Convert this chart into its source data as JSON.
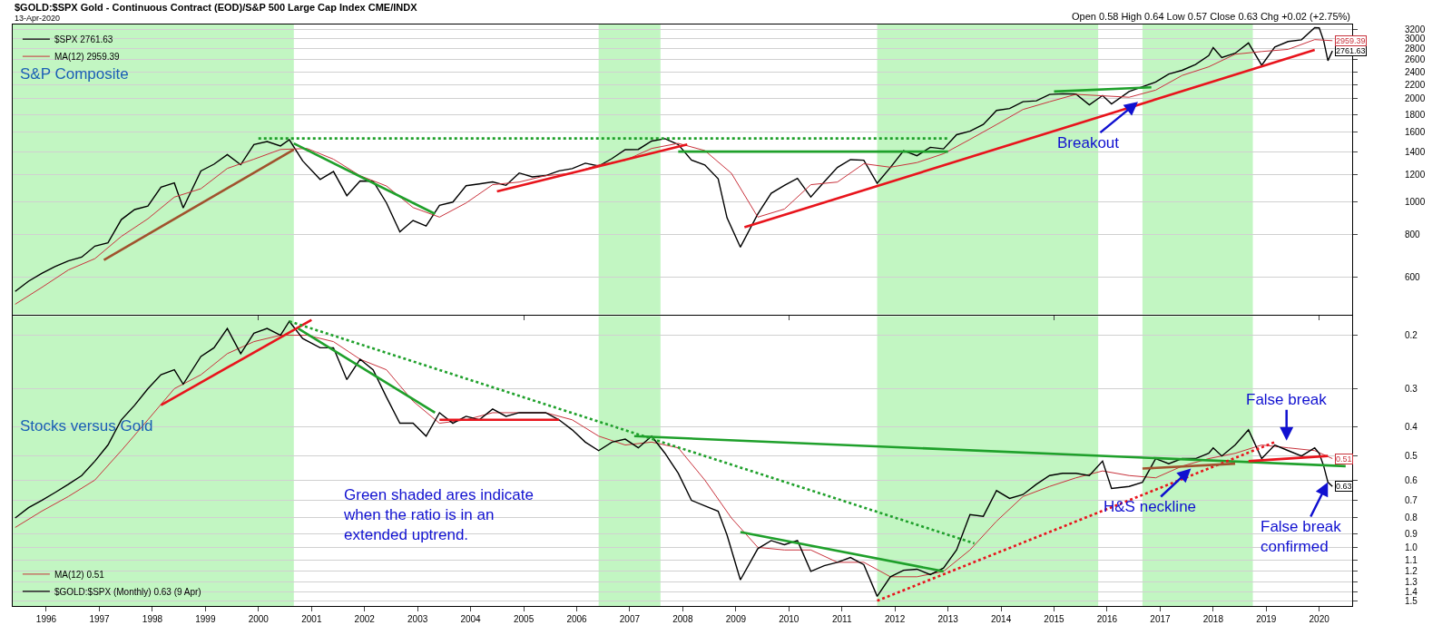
{
  "chart_data": [
    {
      "type": "line",
      "title": "$GOLD:$SPX Gold - Continuous Contract (EOD)/S&P 500 Large Cap Index CME/INDX",
      "subtitle": "13-Apr-2020",
      "x": [
        "1995-06",
        "1995-09",
        "1995-12",
        "1996-03",
        "1996-06",
        "1996-09",
        "1996-12",
        "1997-03",
        "1997-06",
        "1997-09",
        "1997-12",
        "1998-03",
        "1998-06",
        "1998-08",
        "1998-12",
        "1999-03",
        "1999-06",
        "1999-09",
        "1999-12",
        "2000-03",
        "2000-06",
        "2000-08",
        "2000-11",
        "2001-03",
        "2001-06",
        "2001-09",
        "2001-12",
        "2002-03",
        "2002-06",
        "2002-09",
        "2002-12",
        "2003-03",
        "2003-06",
        "2003-09",
        "2003-12",
        "2004-03",
        "2004-06",
        "2004-09",
        "2004-12",
        "2005-03",
        "2005-06",
        "2005-09",
        "2005-12",
        "2006-03",
        "2006-06",
        "2006-09",
        "2006-12",
        "2007-03",
        "2007-06",
        "2007-09",
        "2007-12",
        "2008-03",
        "2008-06",
        "2008-09",
        "2008-11",
        "2009-02",
        "2009-06",
        "2009-09",
        "2009-12",
        "2010-03",
        "2010-06",
        "2010-09",
        "2010-12",
        "2011-03",
        "2011-06",
        "2011-09",
        "2011-12",
        "2012-03",
        "2012-06",
        "2012-09",
        "2012-12",
        "2013-03",
        "2013-06",
        "2013-09",
        "2013-12",
        "2014-03",
        "2014-06",
        "2014-09",
        "2014-12",
        "2015-03",
        "2015-06",
        "2015-09",
        "2015-12",
        "2016-02",
        "2016-06",
        "2016-09",
        "2016-12",
        "2017-03",
        "2017-06",
        "2017-09",
        "2017-12",
        "2018-01",
        "2018-03",
        "2018-06",
        "2018-09",
        "2018-12",
        "2019-03",
        "2019-06",
        "2019-09",
        "2019-12",
        "2020-01",
        "2020-02",
        "2020-03",
        "2020-04"
      ],
      "series": [
        {
          "name": "$SPX 2761.63",
          "color": "#000000",
          "values": [
            545,
            584,
            616,
            645,
            670,
            687,
            740,
            757,
            885,
            947,
            970,
            1101,
            1133,
            957,
            1229,
            1286,
            1372,
            1282,
            1469,
            1498,
            1454,
            1517,
            1315,
            1160,
            1224,
            1040,
            1148,
            1147,
            990,
            815,
            880,
            848,
            975,
            996,
            1112,
            1126,
            1141,
            1115,
            1212,
            1181,
            1191,
            1229,
            1248,
            1295,
            1270,
            1336,
            1418,
            1421,
            1503,
            1527,
            1468,
            1323,
            1280,
            1166,
            896,
            735,
            919,
            1057,
            1115,
            1169,
            1031,
            1141,
            1258,
            1326,
            1321,
            1131,
            1258,
            1408,
            1362,
            1441,
            1426,
            1569,
            1606,
            1682,
            1848,
            1872,
            1960,
            1972,
            2059,
            2068,
            2063,
            1920,
            2044,
            1932,
            2099,
            2168,
            2239,
            2363,
            2423,
            2519,
            2674,
            2824,
            2641,
            2718,
            2914,
            2507,
            2834,
            2942,
            2977,
            3231,
            3226,
            2954,
            2585,
            2761.63
          ],
          "value_labels": [
            null,
            null,
            null,
            null,
            null,
            null,
            null,
            null,
            null,
            null,
            null,
            null,
            null,
            null,
            null,
            null,
            null,
            null,
            null,
            null,
            null,
            null,
            null,
            null,
            null,
            null,
            null,
            null,
            null,
            null,
            null,
            null,
            null,
            null,
            null,
            null,
            null,
            null,
            null,
            null,
            null,
            null,
            null,
            null,
            null,
            null,
            null,
            null,
            null,
            null,
            null,
            null,
            null,
            null,
            null,
            null,
            null,
            null,
            null,
            null,
            null,
            null,
            null,
            null,
            null,
            null,
            null,
            null,
            null,
            null,
            null,
            null,
            null,
            null,
            null,
            null,
            null,
            null,
            null,
            null,
            null,
            null,
            null,
            null,
            null,
            null,
            null,
            null,
            null,
            null,
            null,
            null,
            null,
            null,
            null,
            null,
            null,
            null,
            null,
            null,
            null,
            null,
            null,
            "2761.63"
          ]
        },
        {
          "name": "MA(12) 2959.39",
          "color": "#c8323c",
          "x": [
            "1995-06",
            "1995-12",
            "1996-06",
            "1996-12",
            "1997-06",
            "1997-12",
            "1998-06",
            "1998-12",
            "1999-06",
            "1999-12",
            "2000-06",
            "2000-12",
            "2001-06",
            "2001-12",
            "2002-06",
            "2002-12",
            "2003-06",
            "2003-12",
            "2004-06",
            "2004-12",
            "2005-06",
            "2005-12",
            "2006-06",
            "2006-12",
            "2007-06",
            "2007-12",
            "2008-06",
            "2008-12",
            "2009-06",
            "2009-12",
            "2010-06",
            "2010-12",
            "2011-06",
            "2011-12",
            "2012-06",
            "2012-12",
            "2013-06",
            "2013-12",
            "2014-06",
            "2014-12",
            "2015-06",
            "2015-12",
            "2016-06",
            "2016-12",
            "2017-06",
            "2017-12",
            "2018-06",
            "2018-12",
            "2019-06",
            "2019-12",
            "2020-04"
          ],
          "values": [
            500,
            560,
            630,
            680,
            790,
            890,
            1030,
            1090,
            1250,
            1330,
            1420,
            1430,
            1330,
            1190,
            1110,
            960,
            900,
            990,
            1120,
            1140,
            1190,
            1210,
            1280,
            1320,
            1430,
            1480,
            1410,
            1210,
            900,
            950,
            1120,
            1140,
            1290,
            1260,
            1300,
            1380,
            1520,
            1680,
            1860,
            1960,
            2060,
            2040,
            2020,
            2120,
            2340,
            2480,
            2700,
            2750,
            2790,
            2980,
            2959.39
          ],
          "value_labels": [
            null,
            null,
            null,
            null,
            null,
            null,
            null,
            null,
            null,
            null,
            null,
            null,
            null,
            null,
            null,
            null,
            null,
            null,
            null,
            null,
            null,
            null,
            null,
            null,
            null,
            null,
            null,
            null,
            null,
            null,
            null,
            null,
            null,
            null,
            null,
            null,
            null,
            null,
            null,
            null,
            null,
            null,
            null,
            null,
            null,
            null,
            null,
            null,
            null,
            null,
            "2959.39"
          ]
        },
        {
          "type": "line",
          "x": [
            "1997-02",
            "2000-09"
          ],
          "values": [
            674,
            1420
          ],
          "color": "#a0522d"
        },
        {
          "type": "line",
          "x": [
            "2000-01",
            "2013-01"
          ],
          "values": [
            1530,
            1530
          ],
          "color": "#1fa02b",
          "line_style": "dotted"
        },
        {
          "type": "line",
          "x": [
            "2000-09",
            "2003-05"
          ],
          "values": [
            1480,
            920
          ],
          "color": "#1fa02b"
        },
        {
          "type": "line",
          "x": [
            "2004-07",
            "2008-02"
          ],
          "values": [
            1070,
            1470
          ],
          "color": "#e8141c"
        },
        {
          "type": "line",
          "x": [
            "2007-12",
            "2013-01"
          ],
          "values": [
            1400,
            1400
          ],
          "color": "#1fa02b"
        },
        {
          "type": "line",
          "x": [
            "2009-03",
            "2019-12"
          ],
          "values": [
            840,
            2780
          ],
          "color": "#e8141c"
        },
        {
          "type": "line",
          "x": [
            "2015-01",
            "2016-11"
          ],
          "values": [
            2100,
            2160
          ],
          "color": "#1fa02b"
        }
      ],
      "bands": [
        {
          "axis": "x",
          "from": "1995-05-15",
          "to": "2000-09-01",
          "color": "#90ee90"
        },
        {
          "axis": "x",
          "from": "2006-06-01",
          "to": "2007-08-01",
          "color": "#90ee90"
        },
        {
          "axis": "x",
          "from": "2011-09-01",
          "to": "2015-11-01",
          "color": "#90ee90"
        },
        {
          "axis": "x",
          "from": "2016-09-01",
          "to": "2018-10-01",
          "color": "#90ee90"
        }
      ],
      "annotations": [
        "Open 0.58 High 0.64 Low 0.57 Close 0.63 Chg +0.02 (+2.75%)",
        "S&P Composite",
        {
          "text": "Breakout",
          "x": "2016-08",
          "y": 1960
        }
      ],
      "xlim": [
        "1995-05-15",
        "2020-08-15"
      ],
      "ylim": [
        467,
        3300
      ],
      "yticks": [
        600,
        800,
        1000,
        1200,
        1400,
        1600,
        1800,
        2000,
        2200,
        2400,
        2600,
        2800,
        3000,
        3200
      ],
      "log": "y",
      "grid": "y",
      "legend": "top left",
      "tick_labels": "y"
    },
    {
      "type": "line",
      "x": [
        "1995-06",
        "1995-09",
        "1995-12",
        "1996-03",
        "1996-06",
        "1996-09",
        "1996-12",
        "1997-03",
        "1997-06",
        "1997-09",
        "1997-12",
        "1998-03",
        "1998-06",
        "1998-08",
        "1998-12",
        "1999-03",
        "1999-06",
        "1999-09",
        "1999-12",
        "2000-03",
        "2000-06",
        "2000-08",
        "2000-11",
        "2001-03",
        "2001-06",
        "2001-09",
        "2001-12",
        "2002-03",
        "2002-06",
        "2002-09",
        "2002-12",
        "2003-03",
        "2003-06",
        "2003-09",
        "2003-12",
        "2004-03",
        "2004-06",
        "2004-09",
        "2004-12",
        "2005-03",
        "2005-06",
        "2005-09",
        "2005-12",
        "2006-03",
        "2006-06",
        "2006-09",
        "2006-12",
        "2007-03",
        "2007-06",
        "2007-09",
        "2007-12",
        "2008-03",
        "2008-06",
        "2008-09",
        "2008-11",
        "2009-02",
        "2009-06",
        "2009-09",
        "2009-12",
        "2010-03",
        "2010-06",
        "2010-09",
        "2010-12",
        "2011-03",
        "2011-06",
        "2011-09",
        "2011-12",
        "2012-03",
        "2012-06",
        "2012-09",
        "2012-12",
        "2013-03",
        "2013-06",
        "2013-09",
        "2013-12",
        "2014-03",
        "2014-06",
        "2014-09",
        "2014-12",
        "2015-03",
        "2015-06",
        "2015-09",
        "2015-12",
        "2016-02",
        "2016-06",
        "2016-09",
        "2016-12",
        "2017-03",
        "2017-06",
        "2017-09",
        "2017-12",
        "2018-01",
        "2018-03",
        "2018-06",
        "2018-09",
        "2018-12",
        "2019-03",
        "2019-06",
        "2019-09",
        "2019-12",
        "2020-01",
        "2020-02",
        "2020-03",
        "2020-04"
      ],
      "series": [
        {
          "name": "MA(12) 0.51",
          "color": "#c8323c",
          "x": [
            "1995-06",
            "1995-12",
            "1996-06",
            "1996-12",
            "1997-06",
            "1997-12",
            "1998-06",
            "1998-12",
            "1999-06",
            "1999-12",
            "2000-06",
            "2000-12",
            "2001-06",
            "2001-12",
            "2002-06",
            "2002-12",
            "2003-06",
            "2003-12",
            "2004-06",
            "2004-12",
            "2005-06",
            "2005-12",
            "2006-06",
            "2006-12",
            "2007-06",
            "2007-12",
            "2008-06",
            "2008-12",
            "2009-06",
            "2009-12",
            "2010-06",
            "2010-12",
            "2011-06",
            "2011-12",
            "2012-06",
            "2012-12",
            "2013-06",
            "2013-12",
            "2014-06",
            "2014-12",
            "2015-06",
            "2015-12",
            "2016-06",
            "2016-12",
            "2017-06",
            "2017-12",
            "2018-06",
            "2018-12",
            "2019-06",
            "2019-12",
            "2020-04"
          ],
          "values": [
            0.86,
            0.76,
            0.68,
            0.6,
            0.48,
            0.38,
            0.3,
            0.27,
            0.23,
            0.21,
            0.2,
            0.2,
            0.21,
            0.24,
            0.26,
            0.33,
            0.39,
            0.38,
            0.36,
            0.36,
            0.36,
            0.38,
            0.43,
            0.46,
            0.45,
            0.47,
            0.6,
            0.8,
            1.0,
            1.02,
            1.02,
            1.12,
            1.12,
            1.25,
            1.25,
            1.2,
            1.02,
            0.82,
            0.68,
            0.63,
            0.59,
            0.56,
            0.58,
            0.59,
            0.54,
            0.51,
            0.49,
            0.46,
            0.47,
            0.48,
            0.51
          ],
          "value_labels": [
            null,
            null,
            null,
            null,
            null,
            null,
            null,
            null,
            null,
            null,
            null,
            null,
            null,
            null,
            null,
            null,
            null,
            null,
            null,
            null,
            null,
            null,
            null,
            null,
            null,
            null,
            null,
            null,
            null,
            null,
            null,
            null,
            null,
            null,
            null,
            null,
            null,
            null,
            null,
            null,
            null,
            null,
            null,
            null,
            null,
            null,
            null,
            null,
            null,
            null,
            "0.51"
          ]
        },
        {
          "name": "$GOLD:$SPX (Monthly) 0.63 (9 Apr)",
          "color": "#000000",
          "values": [
            0.8,
            0.74,
            0.7,
            0.66,
            0.62,
            0.58,
            0.52,
            0.46,
            0.38,
            0.34,
            0.3,
            0.27,
            0.26,
            0.29,
            0.235,
            0.22,
            0.19,
            0.23,
            0.197,
            0.19,
            0.2,
            0.18,
            0.205,
            0.22,
            0.22,
            0.28,
            0.24,
            0.26,
            0.32,
            0.39,
            0.39,
            0.43,
            0.36,
            0.39,
            0.37,
            0.38,
            0.35,
            0.37,
            0.36,
            0.36,
            0.36,
            0.38,
            0.41,
            0.45,
            0.48,
            0.45,
            0.44,
            0.47,
            0.43,
            0.49,
            0.57,
            0.7,
            0.73,
            0.76,
            0.91,
            1.28,
            1.01,
            0.95,
            0.98,
            0.95,
            1.2,
            1.15,
            1.12,
            1.08,
            1.14,
            1.45,
            1.25,
            1.19,
            1.18,
            1.23,
            1.17,
            1.02,
            0.78,
            0.79,
            0.65,
            0.69,
            0.67,
            0.62,
            0.58,
            0.57,
            0.57,
            0.58,
            0.52,
            0.64,
            0.63,
            0.61,
            0.51,
            0.53,
            0.51,
            0.51,
            0.49,
            0.47,
            0.5,
            0.46,
            0.41,
            0.51,
            0.46,
            0.48,
            0.5,
            0.47,
            0.49,
            0.54,
            0.61,
            0.63
          ],
          "value_labels": [
            null,
            null,
            null,
            null,
            null,
            null,
            null,
            null,
            null,
            null,
            null,
            null,
            null,
            null,
            null,
            null,
            null,
            null,
            null,
            null,
            null,
            null,
            null,
            null,
            null,
            null,
            null,
            null,
            null,
            null,
            null,
            null,
            null,
            null,
            null,
            null,
            null,
            null,
            null,
            null,
            null,
            null,
            null,
            null,
            null,
            null,
            null,
            null,
            null,
            null,
            null,
            null,
            null,
            null,
            null,
            null,
            null,
            null,
            null,
            null,
            null,
            null,
            null,
            null,
            null,
            null,
            null,
            null,
            null,
            null,
            null,
            null,
            null,
            null,
            null,
            null,
            null,
            null,
            null,
            null,
            null,
            null,
            null,
            null,
            null,
            null,
            null,
            null,
            null,
            null,
            null,
            null,
            null,
            null,
            null,
            null,
            null,
            null,
            null,
            null,
            null,
            null,
            null,
            "0.63"
          ]
        },
        {
          "type": "line",
          "x": [
            "1998-03",
            "2001-01"
          ],
          "values": [
            0.34,
            0.178
          ],
          "color": "#e8141c"
        },
        {
          "type": "line",
          "x": [
            "2000-10",
            "2003-05"
          ],
          "values": [
            0.19,
            0.36
          ],
          "color": "#1fa02b"
        },
        {
          "type": "line",
          "x": [
            "2000-08",
            "2013-07"
          ],
          "values": [
            0.18,
            0.97
          ],
          "color": "#1fa02b",
          "line_style": "dotted"
        },
        {
          "type": "line",
          "x": [
            "2003-06",
            "2005-09"
          ],
          "values": [
            0.38,
            0.38
          ],
          "color": "#e8141c"
        },
        {
          "type": "line",
          "x": [
            "2007-02",
            "2020-07"
          ],
          "values": [
            0.43,
            0.54
          ],
          "color": "#1fa02b"
        },
        {
          "type": "line",
          "x": [
            "2009-02",
            "2012-12"
          ],
          "values": [
            0.89,
            1.2
          ],
          "color": "#1fa02b"
        },
        {
          "type": "line",
          "x": [
            "2011-09",
            "2019-03"
          ],
          "values": [
            1.5,
            0.45
          ],
          "color": "#e8141c",
          "line_style": "dotted"
        },
        {
          "type": "line",
          "x": [
            "2016-09",
            "2018-06"
          ],
          "values": [
            0.55,
            0.53
          ],
          "color": "#a0522d"
        },
        {
          "type": "line",
          "x": [
            "2018-09",
            "2020-03"
          ],
          "values": [
            0.52,
            0.5
          ],
          "color": "#e8141c"
        }
      ],
      "bands": [
        {
          "axis": "x",
          "from": "1995-05-15",
          "to": "2000-09-01",
          "color": "#90ee90"
        },
        {
          "axis": "x",
          "from": "2006-06-01",
          "to": "2007-08-01",
          "color": "#90ee90"
        },
        {
          "axis": "x",
          "from": "2011-09-01",
          "to": "2015-11-01",
          "color": "#90ee90"
        },
        {
          "axis": "x",
          "from": "2016-09-01",
          "to": "2018-10-01",
          "color": "#90ee90"
        }
      ],
      "annotations": [
        "Stocks versus Gold",
        "Green shaded ares indicate\nwhen the ratio is in an\nextended uptrend.",
        "False break",
        {
          "text": "H&S neckline",
          "x": "2017-08",
          "y": 0.55
        },
        {
          "text": "False break\nconfirmed",
          "x": "2020-03",
          "y": 0.61
        }
      ],
      "xlim": [
        "1995-05-15",
        "2020-08-15"
      ],
      "xticks": [
        {
          "value": "1996-01-01",
          "label": "1996"
        },
        {
          "value": "1997-01-01",
          "label": "1997"
        },
        {
          "value": "1998-01-01",
          "label": "1998"
        },
        {
          "value": "1999-01-01",
          "label": "1999"
        },
        {
          "value": "2000-01-01",
          "label": "2000"
        },
        {
          "value": "2001-01-01",
          "label": "2001"
        },
        {
          "value": "2002-01-01",
          "label": "2002"
        },
        {
          "value": "2003-01-01",
          "label": "2003"
        },
        {
          "value": "2004-01-01",
          "label": "2004"
        },
        {
          "value": "2005-01-01",
          "label": "2005"
        },
        {
          "value": "2006-01-01",
          "label": "2006"
        },
        {
          "value": "2007-01-01",
          "label": "2007"
        },
        {
          "value": "2008-01-01",
          "label": "2008"
        },
        {
          "value": "2009-01-01",
          "label": "2009"
        },
        {
          "value": "2010-01-01",
          "label": "2010"
        },
        {
          "value": "2011-01-01",
          "label": "2011"
        },
        {
          "value": "2012-01-01",
          "label": "2012"
        },
        {
          "value": "2013-01-01",
          "label": "2013"
        },
        {
          "value": "2014-01-01",
          "label": "2014"
        },
        {
          "value": "2015-01-01",
          "label": "2015"
        },
        {
          "value": "2016-01-01",
          "label": "2016"
        },
        {
          "value": "2017-01-01",
          "label": "2017"
        },
        {
          "value": "2018-01-01",
          "label": "2018"
        },
        {
          "value": "2019-01-01",
          "label": "2019"
        },
        {
          "value": "2020-01-01",
          "label": "2020"
        }
      ],
      "ylim": [
        1.56,
        0.173
      ],
      "yticks": [
        0.2,
        0.3,
        0.4,
        0.5,
        0.6,
        0.7,
        0.8,
        0.9,
        {
          "value": 1,
          "label": "1.0"
        },
        1.1,
        1.2,
        1.3,
        1.4,
        1.5
      ],
      "log": "y",
      "grid": "y",
      "legend": "bottom left"
    }
  ]
}
